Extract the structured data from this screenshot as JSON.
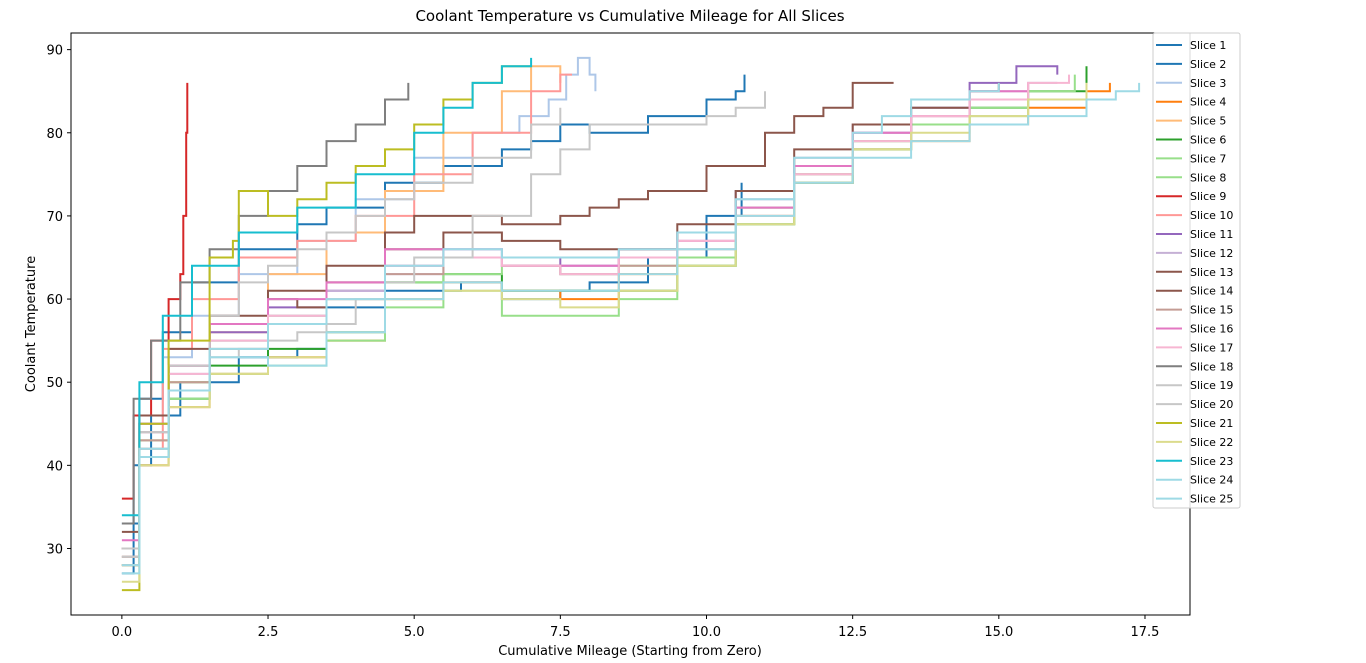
{
  "chart_data": {
    "type": "line",
    "title": "Coolant Temperature vs Cumulative Mileage for All Slices",
    "xlabel": "Cumulative Mileage (Starting from Zero)",
    "ylabel": "Coolant Temperature",
    "xlim": [
      -0.87,
      18.27
    ],
    "ylim": [
      22,
      92
    ],
    "xticks": [
      0.0,
      2.5,
      5.0,
      7.5,
      10.0,
      12.5,
      15.0,
      17.5
    ],
    "xtick_labels": [
      "0.0",
      "2.5",
      "5.0",
      "7.5",
      "10.0",
      "12.5",
      "15.0",
      "17.5"
    ],
    "yticks": [
      30,
      40,
      50,
      60,
      70,
      80,
      90
    ],
    "ytick_labels": [
      "30",
      "40",
      "50",
      "60",
      "70",
      "80",
      "90"
    ],
    "grid": false,
    "legend_position": "top-right",
    "series": [
      {
        "name": "Slice 1",
        "color": "#1f77b4",
        "x": [
          0.0,
          0.2,
          0.5,
          1.0,
          2.0,
          3.0,
          3.5,
          4.5,
          5.8,
          6.5,
          7.0,
          7.5,
          8.0,
          9.0,
          10.0,
          10.6
        ],
        "y": [
          27,
          40,
          46,
          50,
          53,
          54,
          59,
          61,
          62,
          60,
          60,
          61,
          62,
          65,
          70,
          74
        ]
      },
      {
        "name": "Slice 2",
        "color": "#1f77b4",
        "x": [
          0.0,
          0.3,
          0.7,
          1.2,
          2.0,
          3.0,
          3.5,
          4.5,
          5.5,
          6.5,
          7.0,
          7.5,
          8.0,
          9.0,
          10.0,
          10.5,
          10.65
        ],
        "y": [
          33,
          48,
          56,
          62,
          66,
          69,
          71,
          74,
          76,
          78,
          79,
          81,
          80,
          82,
          84,
          85,
          87
        ]
      },
      {
        "name": "Slice 3",
        "color": "#aec7e8",
        "x": [
          0.0,
          0.3,
          0.7,
          1.2,
          2.0,
          3.0,
          4.0,
          5.0,
          6.0,
          6.8,
          7.3,
          7.6,
          7.8,
          8.0,
          8.1
        ],
        "y": [
          30,
          45,
          53,
          58,
          63,
          67,
          72,
          77,
          80,
          82,
          84,
          87,
          89,
          87,
          85
        ]
      },
      {
        "name": "Slice 4",
        "color": "#ff7f0e",
        "x": [
          0.0,
          0.3,
          0.8,
          1.5,
          2.5,
          3.5,
          4.5,
          5.5,
          6.5,
          7.5,
          8.5,
          9.5,
          10.5,
          11.5,
          12.5,
          13.5,
          14.5,
          15.5,
          16.5,
          16.9
        ],
        "y": [
          28,
          40,
          47,
          51,
          53,
          55,
          60,
          62,
          61,
          60,
          63,
          65,
          70,
          74,
          78,
          79,
          81,
          83,
          85,
          86
        ]
      },
      {
        "name": "Slice 5",
        "color": "#ffbb78",
        "x": [
          0.0,
          0.3,
          0.8,
          1.5,
          2.5,
          3.5,
          4.5,
          5.5,
          6.5,
          7.0,
          7.5
        ],
        "y": [
          29,
          43,
          50,
          56,
          63,
          68,
          73,
          80,
          85,
          88,
          86
        ]
      },
      {
        "name": "Slice 6",
        "color": "#2ca02c",
        "x": [
          0.0,
          0.3,
          0.8,
          1.5,
          2.5,
          3.5,
          4.5,
          5.5,
          6.5,
          7.5,
          8.5,
          9.5,
          10.5,
          11.5,
          12.5,
          13.5,
          14.5,
          15.5,
          16.5
        ],
        "y": [
          28,
          41,
          48,
          52,
          54,
          56,
          62,
          63,
          61,
          61,
          61,
          64,
          69,
          74,
          78,
          81,
          83,
          85,
          88
        ]
      },
      {
        "name": "Slice 7",
        "color": "#98df8a",
        "x": [
          0.0,
          0.3,
          0.8,
          1.5,
          2.5,
          3.5,
          4.5,
          5.5,
          6.5,
          7.5,
          8.5,
          9.5,
          10.5,
          11.5,
          12.5,
          13.5,
          14.5,
          15.5,
          16.5
        ],
        "y": [
          28,
          42,
          48,
          51,
          52,
          55,
          59,
          61,
          58,
          58,
          60,
          64,
          69,
          75,
          79,
          81,
          82,
          84,
          86
        ]
      },
      {
        "name": "Slice 8",
        "color": "#98df8a",
        "x": [
          0.0,
          0.3,
          0.8,
          1.5,
          2.5,
          3.5,
          4.5,
          5.5,
          6.5,
          7.5,
          8.5,
          9.5,
          10.5,
          11.5,
          12.5,
          13.5,
          14.5,
          15.5,
          16.3
        ],
        "y": [
          30,
          43,
          50,
          55,
          58,
          60,
          62,
          63,
          64,
          63,
          64,
          65,
          71,
          76,
          79,
          81,
          83,
          85,
          87
        ]
      },
      {
        "name": "Slice 9",
        "color": "#d62728",
        "x": [
          0.0,
          0.2,
          0.5,
          0.8,
          1.0,
          1.05,
          1.1,
          1.12
        ],
        "y": [
          36,
          46,
          55,
          60,
          63,
          70,
          80,
          86
        ]
      },
      {
        "name": "Slice 10",
        "color": "#ff9896",
        "x": [
          0.0,
          0.3,
          0.7,
          1.2,
          2.0,
          3.0,
          4.0,
          5.0,
          6.0,
          7.0,
          7.5,
          7.7
        ],
        "y": [
          28,
          42,
          54,
          60,
          65,
          67,
          70,
          75,
          80,
          85,
          87,
          87
        ]
      },
      {
        "name": "Slice 11",
        "color": "#9467bd",
        "x": [
          0.0,
          0.3,
          0.8,
          1.5,
          2.5,
          3.5,
          4.5,
          5.5,
          6.5,
          7.5,
          8.5,
          9.5,
          10.5,
          11.5,
          12.5,
          13.5,
          14.5,
          15.3,
          16.0
        ],
        "y": [
          30,
          45,
          52,
          56,
          59,
          61,
          64,
          66,
          65,
          64,
          66,
          68,
          73,
          76,
          80,
          83,
          86,
          88,
          87
        ]
      },
      {
        "name": "Slice 12",
        "color": "#c5b0d5",
        "x": [
          0.0,
          0.3,
          0.8,
          1.5,
          2.5,
          3.5,
          4.5,
          5.5,
          6.5,
          7.5,
          8.5,
          9.5,
          10.5,
          11.5,
          12.5,
          13.5,
          14.5,
          15.5,
          16.0
        ],
        "y": [
          29,
          44,
          51,
          55,
          58,
          61,
          63,
          65,
          64,
          63,
          65,
          67,
          72,
          77,
          81,
          83,
          85,
          86,
          86
        ]
      },
      {
        "name": "Slice 13",
        "color": "#8c564b",
        "x": [
          0.0,
          0.3,
          0.8,
          1.5,
          2.5,
          3.5,
          4.5,
          5.0,
          5.8,
          6.5,
          7.5,
          8.0,
          8.5,
          9.0,
          10.0,
          11.0,
          11.5,
          12.0,
          12.5,
          13.2
        ],
        "y": [
          32,
          46,
          54,
          58,
          61,
          64,
          68,
          70,
          70,
          69,
          70,
          71,
          72,
          73,
          76,
          80,
          82,
          83,
          86,
          86
        ]
      },
      {
        "name": "Slice 14",
        "color": "#8c564b",
        "x": [
          0.0,
          0.3,
          0.8,
          1.5,
          2.5,
          3.0,
          3.5,
          4.5,
          5.5,
          6.5,
          7.5,
          8.5,
          9.5,
          10.5,
          11.5,
          12.5,
          13.5,
          14.5,
          15.0
        ],
        "y": [
          30,
          44,
          52,
          57,
          60,
          59,
          62,
          66,
          68,
          67,
          66,
          66,
          69,
          73,
          78,
          81,
          83,
          85,
          86
        ]
      },
      {
        "name": "Slice 15",
        "color": "#c49c94",
        "x": [
          0.0,
          0.3,
          0.8,
          1.5,
          2.5,
          3.5,
          4.5,
          5.5,
          6.5,
          7.5,
          8.5,
          9.5,
          10.5,
          11.5,
          12.5,
          13.5,
          14.5,
          15.5
        ],
        "y": [
          29,
          43,
          50,
          54,
          57,
          60,
          63,
          65,
          64,
          63,
          64,
          66,
          71,
          75,
          79,
          82,
          84,
          86
        ]
      },
      {
        "name": "Slice 16",
        "color": "#e377c2",
        "x": [
          0.0,
          0.3,
          0.8,
          1.5,
          2.5,
          3.5,
          4.5,
          5.5,
          6.5,
          7.5,
          8.5,
          9.5,
          10.5,
          11.5,
          12.5,
          13.5,
          14.5,
          15.5
        ],
        "y": [
          31,
          45,
          52,
          57,
          60,
          62,
          66,
          65,
          64,
          64,
          65,
          67,
          71,
          76,
          80,
          82,
          85,
          86
        ]
      },
      {
        "name": "Slice 17",
        "color": "#f7b6d2",
        "x": [
          0.0,
          0.3,
          0.8,
          1.5,
          2.5,
          3.5,
          4.5,
          5.5,
          6.5,
          7.5,
          8.5,
          9.5,
          10.5,
          11.5,
          12.5,
          13.5,
          14.5,
          15.5,
          16.2
        ],
        "y": [
          30,
          44,
          51,
          55,
          58,
          60,
          64,
          65,
          64,
          63,
          65,
          67,
          70,
          75,
          79,
          82,
          84,
          86,
          87
        ]
      },
      {
        "name": "Slice 18",
        "color": "#7f7f7f",
        "x": [
          0.0,
          0.2,
          0.5,
          1.0,
          1.5,
          2.0,
          2.5,
          3.0,
          3.5,
          4.0,
          4.5,
          4.9
        ],
        "y": [
          33,
          48,
          55,
          62,
          66,
          70,
          73,
          76,
          79,
          81,
          84,
          86
        ]
      },
      {
        "name": "Slice 19",
        "color": "#c7c7c7",
        "x": [
          0.0,
          0.3,
          0.8,
          1.5,
          2.0,
          2.5,
          3.0,
          3.5,
          4.0,
          4.5,
          5.0,
          6.0,
          7.0,
          7.5,
          8.0,
          9.0,
          10.0,
          10.5,
          11.0
        ],
        "y": [
          29,
          42,
          49,
          53,
          54,
          55,
          56,
          57,
          60,
          62,
          65,
          70,
          75,
          78,
          81,
          81,
          82,
          83,
          85
        ]
      },
      {
        "name": "Slice 20",
        "color": "#c7c7c7",
        "x": [
          0.0,
          0.3,
          0.8,
          1.5,
          2.0,
          2.5,
          3.0,
          3.5,
          4.0,
          4.5,
          5.0,
          6.0,
          7.0,
          7.5
        ],
        "y": [
          30,
          44,
          52,
          58,
          62,
          64,
          66,
          68,
          70,
          72,
          74,
          77,
          81,
          83
        ]
      },
      {
        "name": "Slice 21",
        "color": "#bcbd22",
        "x": [
          0.0,
          0.3,
          0.8,
          1.5,
          1.9,
          2.0,
          2.5,
          3.0,
          3.5,
          4.0,
          4.5,
          5.0,
          5.5,
          6.0,
          6.5,
          7.0
        ],
        "y": [
          25,
          45,
          55,
          65,
          67,
          73,
          70,
          72,
          74,
          76,
          78,
          81,
          84,
          86,
          88,
          88
        ]
      },
      {
        "name": "Slice 22",
        "color": "#dbdb8d",
        "x": [
          0.0,
          0.3,
          0.8,
          1.5,
          2.5,
          3.5,
          4.5,
          5.5,
          6.5,
          7.5,
          8.5,
          9.5,
          10.5,
          11.5,
          12.5,
          13.5,
          14.5,
          15.5,
          16.5
        ],
        "y": [
          26,
          40,
          47,
          51,
          53,
          56,
          60,
          61,
          60,
          59,
          61,
          64,
          69,
          74,
          78,
          80,
          82,
          84,
          86
        ]
      },
      {
        "name": "Slice 23",
        "color": "#17becf",
        "x": [
          0.0,
          0.3,
          0.7,
          1.2,
          2.0,
          3.0,
          4.0,
          5.0,
          5.5,
          6.0,
          6.5,
          7.0
        ],
        "y": [
          34,
          50,
          58,
          64,
          68,
          71,
          75,
          80,
          83,
          86,
          88,
          89
        ]
      },
      {
        "name": "Slice 24",
        "color": "#9edae5",
        "x": [
          0.0,
          0.3,
          0.8,
          1.5,
          2.5,
          3.5,
          4.5,
          5.5,
          6.5,
          7.5,
          8.5,
          9.5,
          10.5,
          11.5,
          12.5,
          13.5,
          14.5,
          15.5,
          16.5,
          17.0,
          17.4
        ],
        "y": [
          28,
          42,
          49,
          53,
          52,
          56,
          60,
          62,
          61,
          61,
          63,
          66,
          70,
          74,
          77,
          79,
          81,
          82,
          84,
          85,
          86
        ]
      },
      {
        "name": "Slice 25",
        "color": "#9edae5",
        "x": [
          0.0,
          0.3,
          0.8,
          1.5,
          2.5,
          3.5,
          4.5,
          5.5,
          6.5,
          7.5,
          8.5,
          9.5,
          10.5,
          11.5,
          12.5,
          13.0,
          13.5,
          14.5,
          15.0
        ],
        "y": [
          27,
          41,
          49,
          54,
          57,
          60,
          64,
          66,
          65,
          65,
          66,
          68,
          72,
          77,
          80,
          82,
          84,
          85,
          86
        ]
      }
    ]
  }
}
